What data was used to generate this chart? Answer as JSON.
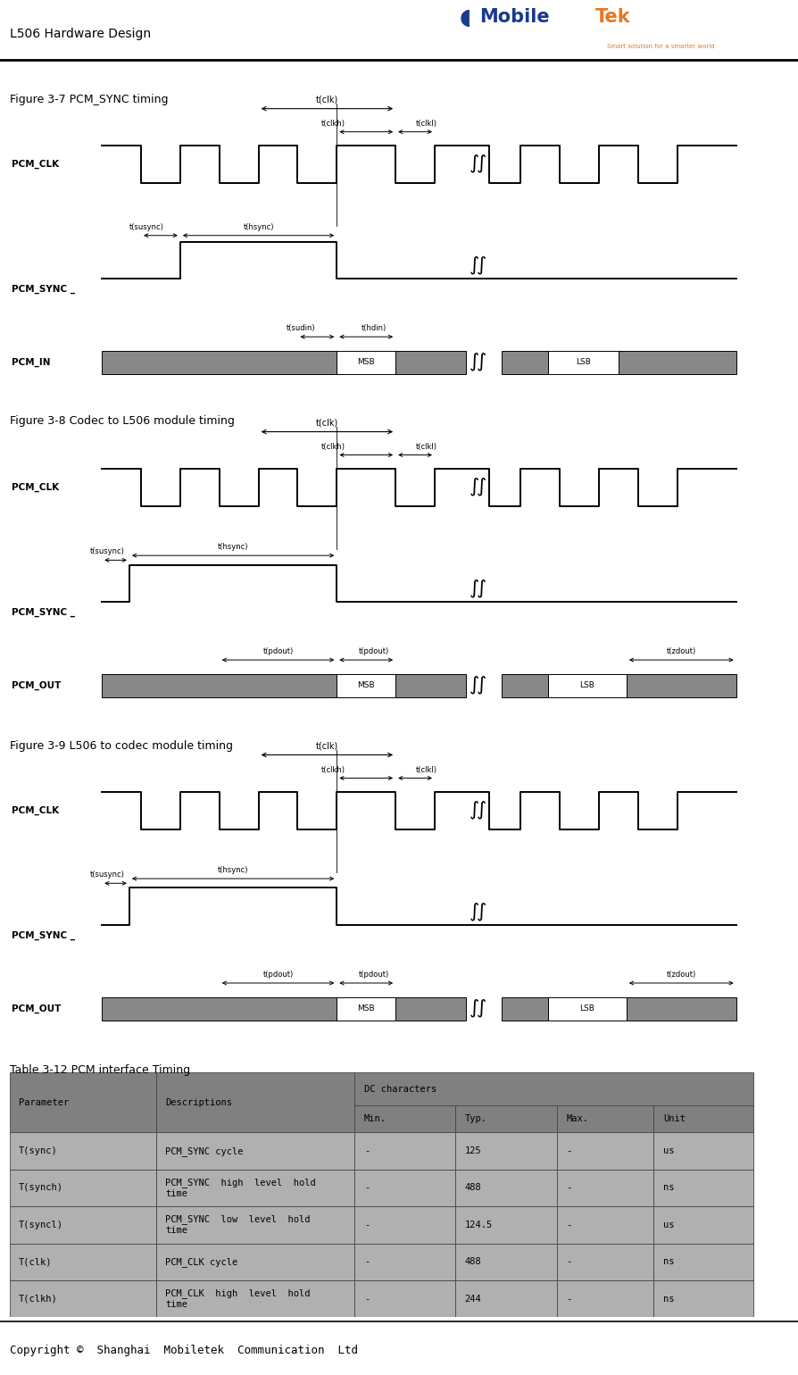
{
  "header_title": "L506 Hardware Design",
  "fig37_title": "Figure 3-7 PCM_SYNC timing",
  "fig38_title": "Figure 3-8 Codec to L506 module timing",
  "fig39_title": "Figure 3-9 L506 to codec module timing",
  "table_title": "Table 3-12 PCM interface Timing",
  "copyright": "Copyright ©  Shanghai  Mobiletek  Communication  Ltd",
  "header_bg": "#ffffff",
  "table_header_bg": "#808080",
  "table_row_bg": "#b0b0b0",
  "table_border": "#555555",
  "signal_fill": "#888888",
  "data_rows": [
    [
      "T(sync)",
      "PCM_SYNC cycle",
      "-",
      "125",
      "-",
      "us"
    ],
    [
      "T(synch)",
      "PCM_SYNC  high  level  hold\ntime",
      "-",
      "488",
      "-",
      "ns"
    ],
    [
      "T(syncl)",
      "PCM_SYNC  low  level  hold\ntime",
      "-",
      "124.5",
      "-",
      "us"
    ],
    [
      "T(clk)",
      "PCM_CLK cycle",
      "-",
      "488",
      "-",
      "ns"
    ],
    [
      "T(clkh)",
      "PCM_CLK  high  level  hold\ntime",
      "-",
      "244",
      "-",
      "ns"
    ]
  ]
}
